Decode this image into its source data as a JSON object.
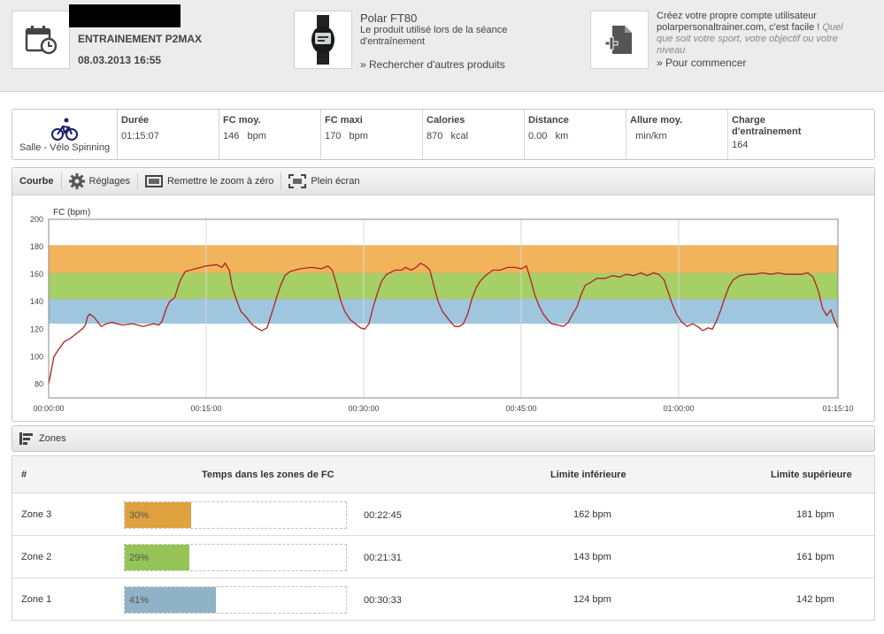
{
  "header": {
    "session_title": "ENTRAINEMENT P2MAX",
    "session_date": "08.03.2013 16:55",
    "product_name": "Polar FT80",
    "product_desc": "Le produit utilisé lors de la séance d'entraînement",
    "product_link": "» Rechercher d'autres produits",
    "promo_text": "Créez votre propre compte utilisateur polarpersonaltrainer.com, c'est facile !",
    "promo_italic": "Quel que soit votre sport, votre objectif ou votre niveau",
    "promo_link": "» Pour commencer"
  },
  "stats": {
    "sport": "Salle - Vélo Spinning",
    "items": [
      {
        "label": "Durée",
        "value": "01:15:07"
      },
      {
        "label": "FC moy.",
        "value": "146   bpm"
      },
      {
        "label": "FC maxi",
        "value": "170   bpm"
      },
      {
        "label": "Calories",
        "value": "870   kcal"
      },
      {
        "label": "Distance",
        "value": "0.00   km"
      },
      {
        "label": "Allure moy.",
        "value": "  min/km"
      },
      {
        "label": "Charge d'entraînement",
        "value": "164"
      }
    ]
  },
  "toolbar": {
    "curve": "Courbe",
    "settings": "Réglages",
    "reset_zoom": "Remettre le zoom à zéro",
    "fullscreen": "Plein écran"
  },
  "chart_data": {
    "type": "line",
    "ylabel": "FC (bpm)",
    "ylim": [
      70,
      200
    ],
    "yticks": [
      80,
      100,
      120,
      140,
      160,
      180,
      200
    ],
    "xticks": [
      "00:00:00",
      "00:15:00",
      "00:30:00",
      "00:45:00",
      "01:00:00",
      "01:15:10"
    ],
    "xlim_minutes": [
      0,
      75.17
    ],
    "bands": [
      {
        "zone": "Zone 1",
        "from": 124,
        "to": 142,
        "color": "#9fc6df"
      },
      {
        "zone": "Zone 2",
        "from": 142,
        "to": 161,
        "color": "#a6cf66"
      },
      {
        "zone": "Zone 3",
        "from": 161,
        "to": 181,
        "color": "#f2b45b"
      }
    ],
    "line_color": "#b22222",
    "series": [
      {
        "values": [
          [
            0,
            80
          ],
          [
            0.5,
            100
          ],
          [
            1,
            106
          ],
          [
            1.5,
            111
          ],
          [
            2,
            113
          ],
          [
            2.5,
            116
          ],
          [
            3,
            119
          ],
          [
            3.3,
            121
          ],
          [
            3.5,
            123
          ],
          [
            3.7,
            129
          ],
          [
            3.9,
            131
          ],
          [
            4.3,
            129
          ],
          [
            4.7,
            125
          ],
          [
            5,
            122
          ],
          [
            5.5,
            124
          ],
          [
            6,
            125
          ],
          [
            7,
            123
          ],
          [
            8,
            124
          ],
          [
            9,
            122
          ],
          [
            10,
            124
          ],
          [
            10.5,
            123
          ],
          [
            10.8,
            126
          ],
          [
            11.2,
            135
          ],
          [
            11.5,
            140
          ],
          [
            12,
            143
          ],
          [
            12.5,
            155
          ],
          [
            13,
            162
          ],
          [
            14,
            164
          ],
          [
            15,
            166
          ],
          [
            16,
            167
          ],
          [
            16.5,
            165
          ],
          [
            16.8,
            168
          ],
          [
            17.2,
            163
          ],
          [
            17.5,
            150
          ],
          [
            17.9,
            141
          ],
          [
            18.3,
            133
          ],
          [
            18.8,
            129
          ],
          [
            19.3,
            124
          ],
          [
            19.8,
            121
          ],
          [
            20.3,
            119
          ],
          [
            20.8,
            121
          ],
          [
            21.3,
            133
          ],
          [
            21.7,
            143
          ],
          [
            22.1,
            152
          ],
          [
            22.5,
            159
          ],
          [
            23,
            162
          ],
          [
            24,
            164
          ],
          [
            25,
            165
          ],
          [
            26,
            164
          ],
          [
            26.6,
            166
          ],
          [
            27,
            163
          ],
          [
            27.4,
            153
          ],
          [
            27.8,
            141
          ],
          [
            28.2,
            133
          ],
          [
            28.7,
            127
          ],
          [
            29.2,
            124
          ],
          [
            29.7,
            121
          ],
          [
            30.1,
            120
          ],
          [
            30.5,
            124
          ],
          [
            30.9,
            136
          ],
          [
            31.3,
            146
          ],
          [
            31.7,
            155
          ],
          [
            32.2,
            160
          ],
          [
            33,
            163
          ],
          [
            33.6,
            163
          ],
          [
            34,
            165
          ],
          [
            34.5,
            163
          ],
          [
            35,
            165
          ],
          [
            35.4,
            168
          ],
          [
            35.9,
            166
          ],
          [
            36.3,
            163
          ],
          [
            36.7,
            151
          ],
          [
            37.1,
            140
          ],
          [
            37.5,
            133
          ],
          [
            37.9,
            129
          ],
          [
            38.3,
            125
          ],
          [
            38.7,
            122
          ],
          [
            39.1,
            122
          ],
          [
            39.5,
            124
          ],
          [
            39.9,
            131
          ],
          [
            40.3,
            142
          ],
          [
            40.7,
            150
          ],
          [
            41.1,
            155
          ],
          [
            41.6,
            159
          ],
          [
            42.3,
            163
          ],
          [
            43,
            163
          ],
          [
            43.7,
            165
          ],
          [
            44.4,
            165
          ],
          [
            45,
            164
          ],
          [
            45.5,
            166
          ],
          [
            45.9,
            156
          ],
          [
            46.3,
            145
          ],
          [
            46.7,
            137
          ],
          [
            47.1,
            131
          ],
          [
            47.5,
            127
          ],
          [
            47.9,
            124
          ],
          [
            48.5,
            123
          ],
          [
            49,
            122
          ],
          [
            49.5,
            125
          ],
          [
            49.9,
            131
          ],
          [
            50.3,
            136
          ],
          [
            50.7,
            145
          ],
          [
            51.1,
            152
          ],
          [
            51.6,
            154
          ],
          [
            52.2,
            157
          ],
          [
            53,
            157
          ],
          [
            53.7,
            159
          ],
          [
            54.4,
            158
          ],
          [
            55,
            160
          ],
          [
            55.7,
            159
          ],
          [
            56.4,
            161
          ],
          [
            57,
            159
          ],
          [
            57.6,
            161
          ],
          [
            58.1,
            160
          ],
          [
            58.6,
            156
          ],
          [
            59,
            147
          ],
          [
            59.4,
            138
          ],
          [
            59.8,
            131
          ],
          [
            60.2,
            126
          ],
          [
            60.8,
            122
          ],
          [
            61.3,
            124
          ],
          [
            61.8,
            122
          ],
          [
            62.3,
            119
          ],
          [
            62.8,
            121
          ],
          [
            63.2,
            120
          ],
          [
            63.6,
            126
          ],
          [
            64,
            134
          ],
          [
            64.4,
            143
          ],
          [
            64.8,
            151
          ],
          [
            65.2,
            156
          ],
          [
            65.8,
            159
          ],
          [
            66.5,
            160
          ],
          [
            67.2,
            160
          ],
          [
            68,
            161
          ],
          [
            68.8,
            160
          ],
          [
            69.5,
            161
          ],
          [
            70.2,
            160
          ],
          [
            71,
            160
          ],
          [
            71.7,
            160
          ],
          [
            72.3,
            161
          ],
          [
            72.8,
            158
          ],
          [
            73.3,
            148
          ],
          [
            73.7,
            135
          ],
          [
            74.1,
            130
          ],
          [
            74.5,
            134
          ],
          [
            74.8,
            127
          ],
          [
            75.17,
            121
          ]
        ]
      }
    ]
  },
  "zones_bar": {
    "label": "Zones"
  },
  "zones_table": {
    "headers": {
      "num": "#",
      "time": "Temps dans les zones de FC",
      "lower": "Limite inférieure",
      "upper": "Limite supérieure"
    },
    "rows": [
      {
        "name": "Zone 3",
        "pct_label": "30%",
        "pct": 30,
        "time": "00:22:45",
        "lower": "162 bpm",
        "upper": "181 bpm",
        "color": "#e0a23e"
      },
      {
        "name": "Zone 2",
        "pct_label": "29%",
        "pct": 29,
        "time": "00:21:31",
        "lower": "143 bpm",
        "upper": "161 bpm",
        "color": "#96c456"
      },
      {
        "name": "Zone 1",
        "pct_label": "41%",
        "pct": 41,
        "time": "00:30:33",
        "lower": "124 bpm",
        "upper": "142 bpm",
        "color": "#8fb2c6"
      }
    ]
  }
}
